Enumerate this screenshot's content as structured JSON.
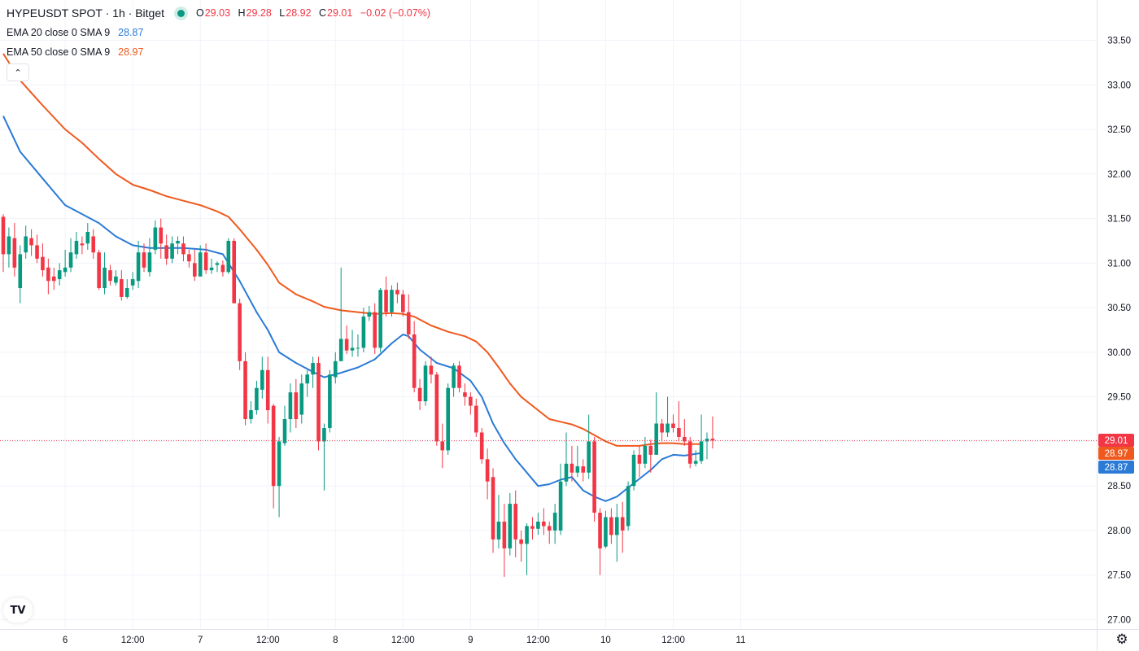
{
  "header": {
    "symbol_title": "HYPEUSDT SPOT · 1h · Bitget",
    "ohlc": [
      {
        "key": "O",
        "value": "29.03"
      },
      {
        "key": "H",
        "value": "29.28"
      },
      {
        "key": "L",
        "value": "28.92"
      },
      {
        "key": "C",
        "value": "29.01"
      }
    ],
    "change": "−0.02 (−0.07%)"
  },
  "indicators": [
    {
      "name": "EMA 20 close 0 SMA 9",
      "value": "28.87",
      "color": "#2a7ad6"
    },
    {
      "name": "EMA 50 close 0 SMA 9",
      "value": "28.97",
      "color": "#f0591e"
    }
  ],
  "colors": {
    "up": "#089981",
    "down": "#f23645",
    "grid": "#f0f3fa",
    "price_line": "#f23645"
  },
  "price_labels": [
    {
      "text": "29.01",
      "value": 29.01,
      "color": "#f23645"
    },
    {
      "text": "28.97",
      "value": 28.97,
      "color": "#f0591e"
    },
    {
      "text": "28.87",
      "value": 28.87,
      "color": "#2a7ad6"
    }
  ],
  "icons": {
    "collapse": "chevron-up-icon",
    "logo": "tradingview-logo",
    "settings": "gear-icon"
  },
  "logo_text": "TV",
  "chart_data": {
    "type": "candlestick",
    "title": "HYPEUSDT SPOT · 1h · Bitget",
    "ylim": [
      26.9,
      33.7
    ],
    "y_ticks": [
      "27.00",
      "27.50",
      "28.00",
      "28.50",
      "29.00",
      "29.50",
      "30.00",
      "30.50",
      "31.00",
      "31.50",
      "32.00",
      "32.50",
      "33.00",
      "33.50"
    ],
    "x_ticks": [
      {
        "label": "6",
        "bar": 11
      },
      {
        "label": "12:00",
        "bar": 23
      },
      {
        "label": "7",
        "bar": 35
      },
      {
        "label": "12:00",
        "bar": 47
      },
      {
        "label": "8",
        "bar": 59
      },
      {
        "label": "12:00",
        "bar": 71
      },
      {
        "label": "9",
        "bar": 83
      },
      {
        "label": "12:00",
        "bar": 95
      },
      {
        "label": "10",
        "bar": 107
      },
      {
        "label": "12:00",
        "bar": 119
      },
      {
        "label": "11",
        "bar": 131
      }
    ],
    "candles": [
      [
        31.52,
        31.1,
        31.55,
        30.9
      ],
      [
        31.1,
        31.3,
        31.4,
        30.95
      ],
      [
        31.28,
        30.95,
        31.45,
        30.85
      ],
      [
        30.72,
        31.1,
        31.2,
        30.55
      ],
      [
        31.12,
        31.3,
        31.42,
        31.05
      ],
      [
        31.28,
        31.2,
        31.38,
        31.08
      ],
      [
        31.2,
        31.05,
        31.32,
        31.0
      ],
      [
        31.07,
        30.92,
        31.22,
        30.85
      ],
      [
        30.95,
        30.8,
        31.05,
        30.65
      ],
      [
        30.85,
        30.8,
        30.95,
        30.7
      ],
      [
        30.82,
        30.92,
        31.0,
        30.75
      ],
      [
        30.9,
        30.95,
        31.15,
        30.85
      ],
      [
        30.95,
        31.12,
        31.28,
        30.9
      ],
      [
        31.1,
        31.25,
        31.35,
        31.05
      ],
      [
        31.22,
        31.2,
        31.3,
        31.1
      ],
      [
        31.22,
        31.35,
        31.45,
        31.15
      ],
      [
        31.3,
        31.12,
        31.38,
        31.05
      ],
      [
        31.12,
        30.72,
        31.15,
        30.7
      ],
      [
        30.72,
        30.95,
        31.12,
        30.65
      ],
      [
        30.92,
        30.8,
        30.98,
        30.75
      ],
      [
        30.78,
        30.85,
        30.92,
        30.75
      ],
      [
        30.82,
        30.62,
        30.92,
        30.58
      ],
      [
        30.62,
        30.72,
        30.82,
        30.6
      ],
      [
        30.75,
        30.82,
        30.9,
        30.7
      ],
      [
        30.8,
        31.12,
        31.25,
        30.72
      ],
      [
        31.12,
        30.95,
        31.22,
        30.9
      ],
      [
        30.9,
        31.12,
        31.28,
        30.85
      ],
      [
        31.15,
        31.4,
        31.48,
        31.1
      ],
      [
        31.4,
        31.22,
        31.5,
        31.05
      ],
      [
        31.2,
        31.05,
        31.32,
        30.98
      ],
      [
        31.05,
        31.22,
        31.3,
        31.0
      ],
      [
        31.22,
        31.25,
        31.3,
        31.1
      ],
      [
        31.22,
        31.1,
        31.3,
        31.02
      ],
      [
        31.1,
        31.02,
        31.15,
        30.95
      ],
      [
        31.0,
        30.85,
        31.15,
        30.8
      ],
      [
        30.85,
        31.12,
        31.2,
        30.85
      ],
      [
        31.12,
        30.92,
        31.22,
        30.88
      ],
      [
        30.92,
        30.95,
        31.05,
        30.88
      ],
      [
        30.98,
        31.0,
        31.02,
        30.9
      ],
      [
        30.98,
        30.9,
        31.03,
        30.85
      ],
      [
        30.9,
        31.25,
        31.28,
        30.88
      ],
      [
        31.25,
        30.55,
        31.28,
        30.55
      ],
      [
        30.55,
        29.9,
        30.6,
        29.8
      ],
      [
        29.9,
        29.25,
        30.0,
        29.18
      ],
      [
        29.25,
        29.35,
        29.45,
        29.2
      ],
      [
        29.35,
        29.6,
        29.68,
        29.3
      ],
      [
        29.58,
        29.8,
        29.95,
        29.48
      ],
      [
        29.8,
        29.35,
        29.95,
        29.2
      ],
      [
        29.4,
        28.5,
        29.42,
        28.25
      ],
      [
        28.5,
        29.0,
        29.05,
        28.15
      ],
      [
        28.98,
        29.25,
        29.4,
        28.95
      ],
      [
        29.25,
        29.55,
        29.65,
        29.1
      ],
      [
        29.55,
        29.25,
        29.7,
        29.15
      ],
      [
        29.3,
        29.65,
        29.75,
        29.2
      ],
      [
        29.65,
        29.75,
        29.8,
        29.5
      ],
      [
        29.75,
        29.88,
        29.95,
        29.6
      ],
      [
        29.88,
        29.0,
        29.95,
        28.9
      ],
      [
        29.0,
        29.15,
        29.2,
        28.45
      ],
      [
        29.15,
        29.75,
        29.8,
        29.1
      ],
      [
        29.72,
        29.9,
        30.0,
        29.65
      ],
      [
        29.9,
        30.15,
        30.95,
        29.9
      ],
      [
        30.15,
        30.02,
        30.3,
        29.98
      ],
      [
        30.02,
        30.05,
        30.25,
        29.95
      ],
      [
        30.05,
        30.05,
        30.2,
        29.95
      ],
      [
        30.05,
        30.4,
        30.5,
        30.0
      ],
      [
        30.4,
        30.45,
        30.52,
        30.35
      ],
      [
        30.45,
        30.05,
        30.55,
        29.98
      ],
      [
        30.05,
        30.7,
        30.72,
        30.0
      ],
      [
        30.7,
        30.45,
        30.85,
        30.4
      ],
      [
        30.45,
        30.7,
        30.75,
        30.4
      ],
      [
        30.7,
        30.65,
        30.78,
        30.55
      ],
      [
        30.65,
        30.45,
        30.7,
        30.4
      ],
      [
        30.45,
        30.2,
        30.65,
        30.15
      ],
      [
        30.2,
        29.6,
        30.35,
        29.55
      ],
      [
        29.6,
        29.45,
        29.7,
        29.35
      ],
      [
        29.45,
        29.85,
        29.9,
        29.4
      ],
      [
        29.85,
        29.75,
        29.95,
        29.65
      ],
      [
        29.75,
        29.0,
        29.78,
        28.95
      ],
      [
        29.0,
        28.9,
        29.2,
        28.7
      ],
      [
        28.9,
        29.6,
        29.65,
        28.85
      ],
      [
        29.6,
        29.85,
        29.88,
        29.5
      ],
      [
        29.85,
        29.6,
        29.9,
        29.55
      ],
      [
        29.55,
        29.5,
        29.65,
        29.4
      ],
      [
        29.5,
        29.4,
        29.55,
        29.3
      ],
      [
        29.4,
        29.1,
        29.48,
        29.05
      ],
      [
        29.1,
        28.8,
        29.15,
        28.75
      ],
      [
        28.8,
        28.55,
        28.92,
        28.35
      ],
      [
        28.6,
        27.9,
        28.7,
        27.75
      ],
      [
        27.9,
        28.1,
        28.4,
        27.8
      ],
      [
        28.1,
        27.8,
        28.3,
        27.48
      ],
      [
        27.8,
        28.3,
        28.42,
        27.72
      ],
      [
        28.3,
        27.9,
        28.45,
        27.7
      ],
      [
        27.9,
        27.85,
        28.0,
        27.65
      ],
      [
        27.85,
        28.05,
        28.08,
        27.5
      ],
      [
        28.05,
        28.02,
        28.15,
        27.9
      ],
      [
        28.02,
        28.1,
        28.2,
        27.95
      ],
      [
        28.1,
        28.05,
        28.25,
        27.95
      ],
      [
        28.05,
        28.0,
        28.1,
        27.85
      ],
      [
        28.0,
        28.2,
        28.3,
        27.85
      ],
      [
        28.0,
        28.55,
        28.75,
        27.95
      ],
      [
        28.55,
        28.75,
        29.1,
        28.5
      ],
      [
        28.75,
        28.65,
        28.95,
        28.55
      ],
      [
        28.65,
        28.72,
        28.95,
        28.6
      ],
      [
        28.72,
        28.65,
        28.8,
        28.55
      ],
      [
        28.65,
        29.0,
        29.3,
        28.58
      ],
      [
        29.0,
        28.2,
        29.05,
        28.1
      ],
      [
        28.2,
        27.8,
        28.25,
        27.5
      ],
      [
        27.82,
        28.15,
        28.22,
        27.8
      ],
      [
        28.15,
        27.95,
        28.25,
        27.85
      ],
      [
        27.95,
        28.15,
        28.3,
        27.65
      ],
      [
        28.15,
        28.0,
        28.32,
        27.75
      ],
      [
        28.05,
        28.5,
        28.55,
        28.0
      ],
      [
        28.5,
        28.85,
        28.9,
        28.45
      ],
      [
        28.85,
        28.75,
        28.95,
        28.6
      ],
      [
        28.75,
        28.95,
        29.05,
        28.7
      ],
      [
        28.95,
        28.85,
        29.02,
        28.65
      ],
      [
        28.85,
        29.2,
        29.55,
        28.85
      ],
      [
        29.2,
        29.1,
        29.25,
        29.0
      ],
      [
        29.1,
        29.2,
        29.5,
        29.05
      ],
      [
        29.2,
        29.15,
        29.3,
        29.1
      ],
      [
        29.15,
        29.05,
        29.45,
        29.0
      ],
      [
        29.05,
        29.0,
        29.25,
        28.95
      ],
      [
        29.0,
        28.75,
        29.05,
        28.7
      ],
      [
        28.75,
        28.78,
        28.9,
        28.72
      ],
      [
        28.78,
        29.0,
        29.3,
        28.75
      ],
      [
        29.0,
        29.03,
        29.1,
        28.8
      ],
      [
        29.03,
        29.01,
        29.28,
        28.92
      ]
    ],
    "series": [
      {
        "name": "EMA 20 close 0 SMA 9",
        "color": "#2a7ad6",
        "points": [
          [
            0,
            32.65
          ],
          [
            3,
            32.25
          ],
          [
            7,
            31.95
          ],
          [
            11,
            31.65
          ],
          [
            14,
            31.55
          ],
          [
            17,
            31.45
          ],
          [
            20,
            31.3
          ],
          [
            23,
            31.2
          ],
          [
            26,
            31.17
          ],
          [
            29,
            31.17
          ],
          [
            32,
            31.17
          ],
          [
            36,
            31.15
          ],
          [
            39,
            31.1
          ],
          [
            40,
            31.0
          ],
          [
            42,
            30.8
          ],
          [
            45,
            30.45
          ],
          [
            47,
            30.25
          ],
          [
            49,
            30.0
          ],
          [
            52,
            29.88
          ],
          [
            55,
            29.78
          ],
          [
            57,
            29.72
          ],
          [
            60,
            29.77
          ],
          [
            63,
            29.83
          ],
          [
            66,
            29.92
          ],
          [
            69,
            30.1
          ],
          [
            71,
            30.2
          ],
          [
            72,
            30.18
          ],
          [
            74,
            30.03
          ],
          [
            77,
            29.88
          ],
          [
            80,
            29.82
          ],
          [
            83,
            29.68
          ],
          [
            85,
            29.5
          ],
          [
            87,
            29.2
          ],
          [
            89,
            28.98
          ],
          [
            91,
            28.8
          ],
          [
            93,
            28.65
          ],
          [
            95,
            28.5
          ],
          [
            97,
            28.52
          ],
          [
            99,
            28.57
          ],
          [
            101,
            28.6
          ],
          [
            103,
            28.45
          ],
          [
            105,
            28.38
          ],
          [
            107,
            28.33
          ],
          [
            109,
            28.38
          ],
          [
            111,
            28.48
          ],
          [
            113,
            28.58
          ],
          [
            115,
            28.68
          ],
          [
            117,
            28.8
          ],
          [
            119,
            28.85
          ],
          [
            121,
            28.84
          ],
          [
            124,
            28.87
          ]
        ]
      },
      {
        "name": "EMA 50 close 0 SMA 9",
        "color": "#f0591e",
        "points": [
          [
            0,
            33.35
          ],
          [
            3,
            33.05
          ],
          [
            7,
            32.77
          ],
          [
            11,
            32.5
          ],
          [
            14,
            32.35
          ],
          [
            17,
            32.17
          ],
          [
            20,
            32.0
          ],
          [
            23,
            31.88
          ],
          [
            26,
            31.82
          ],
          [
            29,
            31.75
          ],
          [
            32,
            31.7
          ],
          [
            35,
            31.65
          ],
          [
            38,
            31.58
          ],
          [
            40,
            31.52
          ],
          [
            42,
            31.38
          ],
          [
            45,
            31.15
          ],
          [
            47,
            30.98
          ],
          [
            49,
            30.78
          ],
          [
            52,
            30.65
          ],
          [
            55,
            30.57
          ],
          [
            57,
            30.51
          ],
          [
            60,
            30.47
          ],
          [
            63,
            30.45
          ],
          [
            66,
            30.43
          ],
          [
            69,
            30.44
          ],
          [
            71,
            30.43
          ],
          [
            73,
            30.4
          ],
          [
            76,
            30.3
          ],
          [
            79,
            30.23
          ],
          [
            82,
            30.18
          ],
          [
            84,
            30.12
          ],
          [
            86,
            30.0
          ],
          [
            88,
            29.83
          ],
          [
            90,
            29.65
          ],
          [
            92,
            29.5
          ],
          [
            95,
            29.35
          ],
          [
            97,
            29.25
          ],
          [
            99,
            29.22
          ],
          [
            101,
            29.19
          ],
          [
            103,
            29.14
          ],
          [
            105,
            29.07
          ],
          [
            107,
            29.0
          ],
          [
            109,
            28.95
          ],
          [
            111,
            28.95
          ],
          [
            113,
            28.95
          ],
          [
            115,
            28.97
          ],
          [
            117,
            28.98
          ],
          [
            119,
            28.98
          ],
          [
            121,
            28.97
          ],
          [
            124,
            28.97
          ]
        ]
      }
    ],
    "last_price": 29.01
  }
}
